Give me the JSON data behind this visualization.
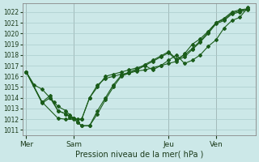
{
  "title": "Pression niveau de la mer( hPa )",
  "bg_color": "#cce8e8",
  "grid_color": "#aacccc",
  "line_color": "#1a5c1a",
  "ylim": [
    1010.5,
    1022.8
  ],
  "yticks": [
    1011,
    1012,
    1013,
    1014,
    1015,
    1016,
    1017,
    1018,
    1019,
    1020,
    1021,
    1022
  ],
  "xtick_labels": [
    "Mer",
    "Sam",
    "Jeu",
    "Ven"
  ],
  "xtick_positions": [
    0,
    6,
    18,
    24
  ],
  "xlim": [
    -0.5,
    29
  ],
  "series": [
    {
      "x": [
        0,
        1,
        2,
        3,
        3.5,
        4,
        5,
        5.5,
        6,
        6.5,
        7,
        8,
        9,
        10,
        11,
        12,
        13,
        14,
        15,
        16,
        17,
        18,
        19,
        20,
        21,
        22,
        23,
        24,
        25,
        26,
        27,
        28
      ],
      "y": [
        1016.4,
        1015.2,
        1014.8,
        1014.0,
        1013.6,
        1013.2,
        1012.8,
        1012.4,
        1012.1,
        1012.0,
        1012.0,
        1014.0,
        1015.2,
        1015.8,
        1016.0,
        1016.2,
        1016.3,
        1016.5,
        1016.6,
        1016.8,
        1017.0,
        1017.2,
        1017.4,
        1018.1,
        1019.0,
        1019.5,
        1020.2,
        1021.0,
        1021.4,
        1022.0,
        1022.2,
        1022.3
      ]
    },
    {
      "x": [
        0,
        2,
        4,
        5,
        6,
        7,
        8,
        9,
        10,
        11,
        12,
        13,
        14,
        15,
        16,
        17,
        18,
        19,
        20,
        21,
        22,
        23,
        24,
        25,
        26,
        27,
        28
      ],
      "y": [
        1016.4,
        1013.6,
        1012.1,
        1012.0,
        1012.0,
        1012.0,
        1014.0,
        1015.0,
        1016.0,
        1016.2,
        1016.4,
        1016.6,
        1016.8,
        1017.0,
        1016.6,
        1017.0,
        1017.5,
        1018.0,
        1017.2,
        1017.5,
        1018.0,
        1018.8,
        1019.4,
        1020.5,
        1021.2,
        1021.5,
        1022.4
      ]
    },
    {
      "x": [
        0,
        2,
        3,
        4,
        5,
        5.5,
        6,
        6.5,
        7,
        8,
        9,
        10,
        11,
        12,
        13,
        14,
        15,
        16,
        17,
        18,
        19,
        20,
        21,
        22,
        23,
        24,
        25,
        26,
        27,
        28
      ],
      "y": [
        1016.4,
        1013.6,
        1014.2,
        1012.8,
        1012.5,
        1012.2,
        1012.1,
        1011.7,
        1011.4,
        1011.4,
        1012.5,
        1013.8,
        1015.0,
        1016.0,
        1016.3,
        1016.6,
        1017.0,
        1017.4,
        1017.8,
        1018.2,
        1017.5,
        1017.8,
        1018.5,
        1019.2,
        1020.0,
        1020.9,
        1021.2,
        1021.8,
        1022.0,
        1022.2
      ]
    },
    {
      "x": [
        0,
        2,
        3,
        4,
        5,
        5.5,
        6,
        6.5,
        7,
        8,
        9,
        10,
        11,
        12,
        13,
        14,
        15,
        16,
        17,
        18,
        19,
        20,
        21,
        22,
        23,
        24,
        25,
        26,
        27,
        28
      ],
      "y": [
        1016.4,
        1013.5,
        1014.0,
        1012.8,
        1012.5,
        1012.2,
        1012.1,
        1011.7,
        1011.4,
        1011.4,
        1012.8,
        1014.0,
        1015.2,
        1016.1,
        1016.4,
        1016.7,
        1017.1,
        1017.5,
        1017.9,
        1018.3,
        1017.6,
        1018.0,
        1018.6,
        1019.3,
        1020.1,
        1021.0,
        1021.3,
        1021.9,
        1022.1,
        1022.3
      ]
    }
  ]
}
